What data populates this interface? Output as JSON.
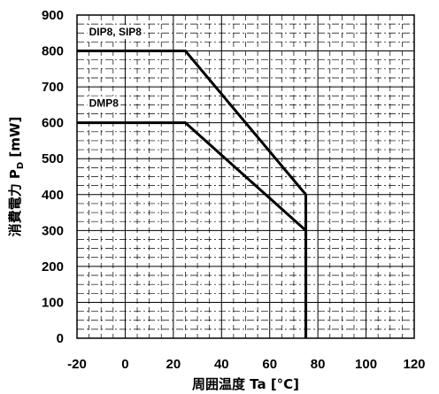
{
  "chart_data": {
    "type": "line",
    "title": "",
    "xlabel": "周囲温度 Ta [°C]",
    "ylabel_main": "消費電力 P",
    "ylabel_sub": "D",
    "ylabel_unit": " [mW]",
    "xlim": [
      -20,
      120
    ],
    "ylim": [
      0,
      900
    ],
    "x_ticks": [
      -20,
      0,
      20,
      40,
      60,
      80,
      100,
      120
    ],
    "y_ticks": [
      0,
      100,
      200,
      300,
      400,
      500,
      600,
      700,
      800,
      900
    ],
    "grid": true,
    "series": [
      {
        "name": "DIP8, SIP8",
        "x": [
          -20,
          25,
          75,
          75
        ],
        "y": [
          800,
          800,
          400,
          0
        ]
      },
      {
        "name": "DMP8",
        "x": [
          -20,
          25,
          75,
          75
        ],
        "y": [
          600,
          600,
          300,
          0
        ]
      }
    ]
  }
}
